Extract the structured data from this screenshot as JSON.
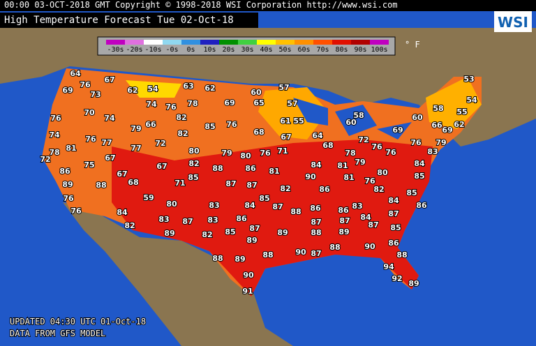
{
  "header": {
    "line": "00:00 03-OCT-2018 GMT Copyright © 1998-2018 WSI Corporation  http://www.wsi.com",
    "title": "High Temperature Forecast  Tue 02-Oct-18",
    "logo": "WSI"
  },
  "legend": {
    "unit": "° F",
    "items": [
      {
        "label": "-30s",
        "color": "#c000c0"
      },
      {
        "label": "-20s",
        "color": "#e070e0"
      },
      {
        "label": "-10s",
        "color": "#ffffff"
      },
      {
        "label": "-0s",
        "color": "#90d8f0"
      },
      {
        "label": "0s",
        "color": "#3090e0"
      },
      {
        "label": "10s",
        "color": "#2020c0"
      },
      {
        "label": "20s",
        "color": "#009000"
      },
      {
        "label": "30s",
        "color": "#40d040"
      },
      {
        "label": "40s",
        "color": "#ffff00"
      },
      {
        "label": "50s",
        "color": "#ffc000"
      },
      {
        "label": "60s",
        "color": "#ff9000"
      },
      {
        "label": "70s",
        "color": "#ff5000"
      },
      {
        "label": "80s",
        "color": "#e01000"
      },
      {
        "label": "90s",
        "color": "#b00000"
      },
      {
        "label": "100s",
        "color": "#c000c0"
      }
    ]
  },
  "temperatures": [
    64,
    76,
    67,
    54,
    63,
    62,
    53,
    69,
    73,
    62,
    60,
    57,
    54,
    74,
    76,
    78,
    69,
    65,
    57,
    58,
    55,
    70,
    74,
    82,
    58,
    76,
    79,
    66,
    85,
    76,
    61,
    55,
    60,
    60,
    66,
    62,
    69,
    69,
    74,
    68,
    82,
    67,
    64,
    76,
    77,
    72,
    68,
    72,
    76,
    76,
    79,
    81,
    78,
    77,
    80,
    79,
    80,
    76,
    71,
    78,
    76,
    83,
    72,
    67,
    79,
    86,
    75,
    67,
    82,
    88,
    86,
    81,
    84,
    81,
    84,
    80,
    85,
    89,
    88,
    67,
    68,
    71,
    85,
    87,
    87,
    82,
    90,
    86,
    81,
    76,
    82,
    85,
    76,
    59,
    80,
    83,
    84,
    85,
    87,
    88,
    86,
    86,
    83,
    84,
    86,
    76,
    84,
    83,
    87,
    83,
    86,
    87,
    87,
    84,
    87,
    82,
    85,
    87,
    89,
    88,
    89,
    87,
    85,
    89,
    82,
    89,
    86,
    88,
    89,
    88,
    90,
    87,
    88,
    90,
    88,
    94,
    90,
    92,
    89,
    91
  ],
  "footer": {
    "updated": "UPDATED 04:30 UTC 01-Oct-18",
    "source": "DATA FROM GFS MODEL"
  }
}
